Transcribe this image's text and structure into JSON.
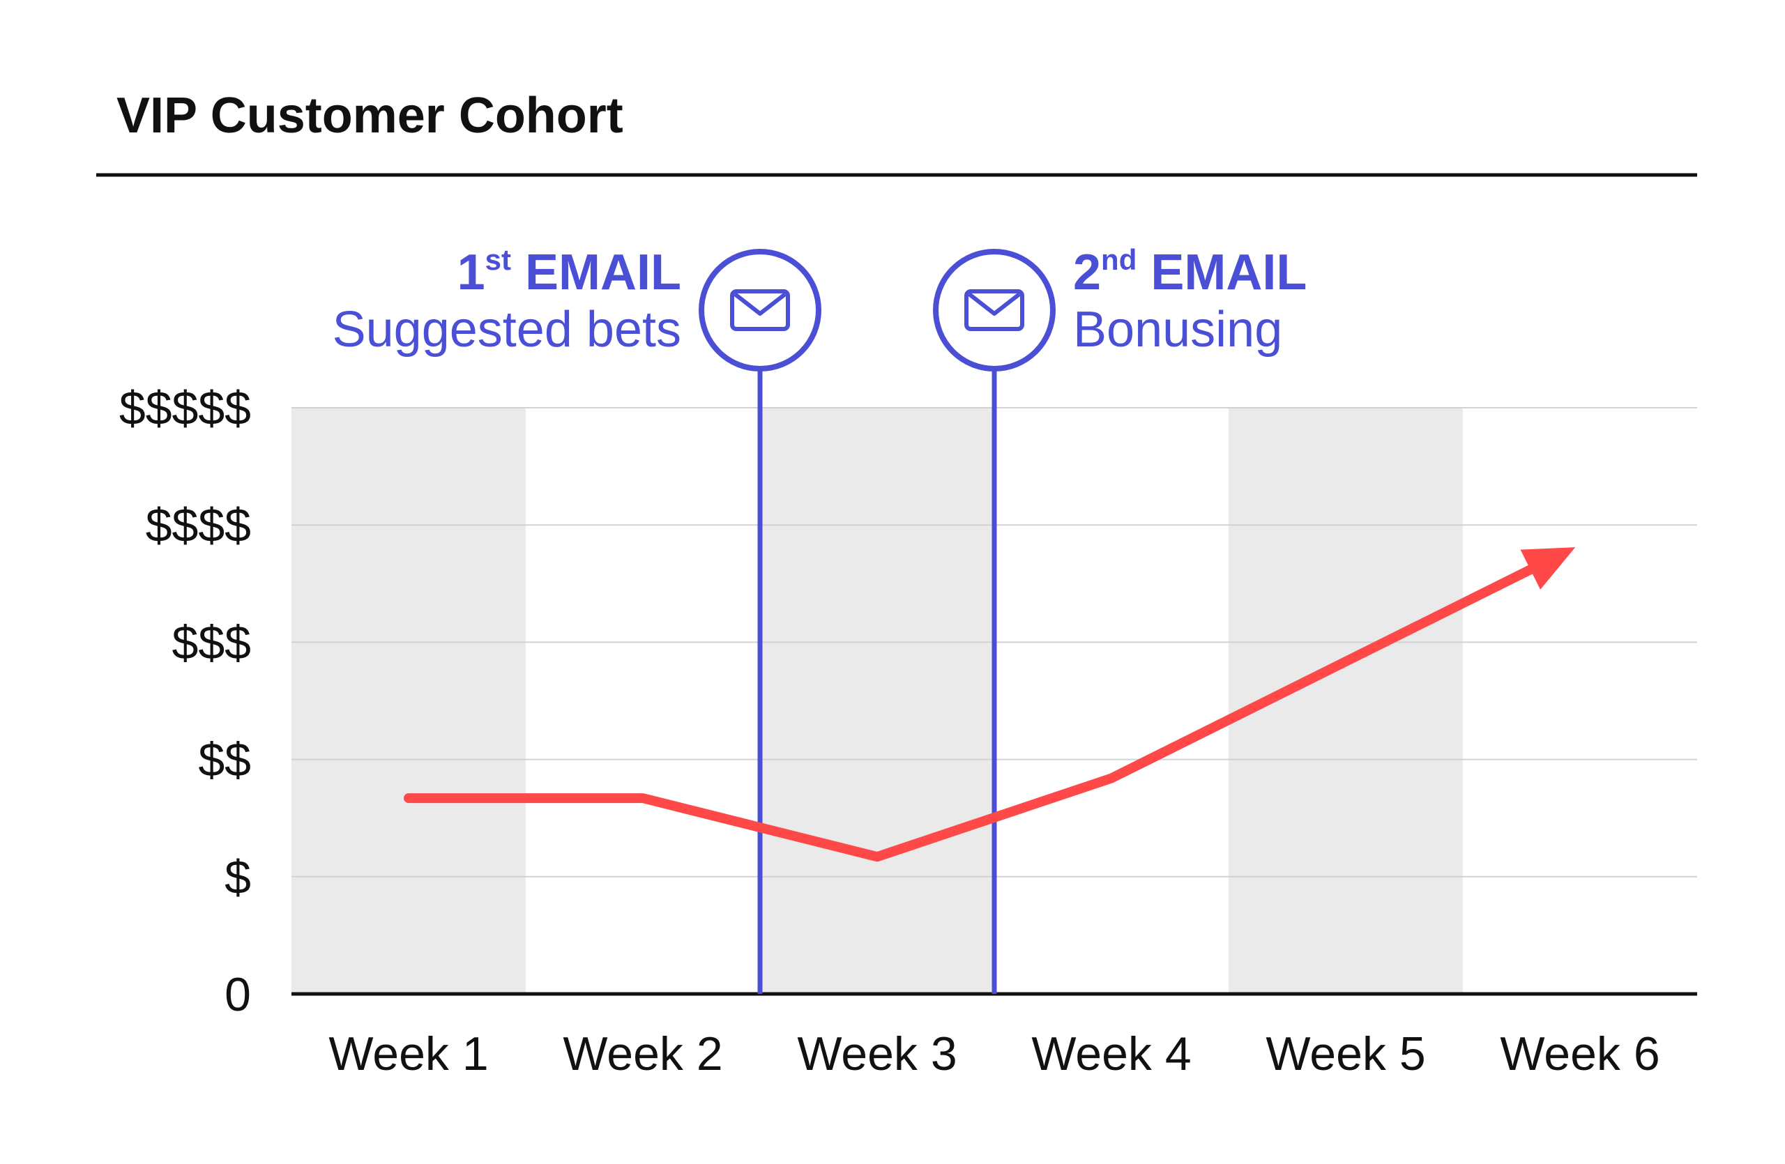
{
  "chart_data": {
    "type": "line",
    "title": "VIP Customer Cohort",
    "categories": [
      "Week 1",
      "Week 2",
      "Week 3",
      "Week 4",
      "Week 5",
      "Week 6"
    ],
    "y_tick_labels": [
      "0",
      "$",
      "$$",
      "$$$",
      "$$$$",
      "$$$$$"
    ],
    "ylim": [
      0,
      5
    ],
    "series": [
      {
        "x": [
          1,
          2,
          3,
          4,
          5.98
        ],
        "values": [
          1.67,
          1.67,
          1.17,
          1.84,
          3.81
        ],
        "ends_with_arrow": true
      }
    ],
    "column_shading": [
      true,
      false,
      true,
      false,
      true,
      false
    ],
    "gridlines": true,
    "annotations": [
      {
        "x": 2.5,
        "title_main": "1",
        "title_sup": "st",
        "title_rest": " EMAIL",
        "subtitle": "Suggested bets",
        "icon": "email-envelope-icon",
        "text_side": "left"
      },
      {
        "x": 3.5,
        "title_main": "2",
        "title_sup": "nd",
        "title_rest": " EMAIL",
        "subtitle": "Bonusing",
        "icon": "email-envelope-icon",
        "text_side": "right"
      }
    ],
    "colors": {
      "line": "#FF4848",
      "annotation": "#4A4FD6",
      "shade": "#EAEAEA",
      "grid": "#D2D2D2",
      "axis": "#111111",
      "text": "#111111"
    }
  }
}
